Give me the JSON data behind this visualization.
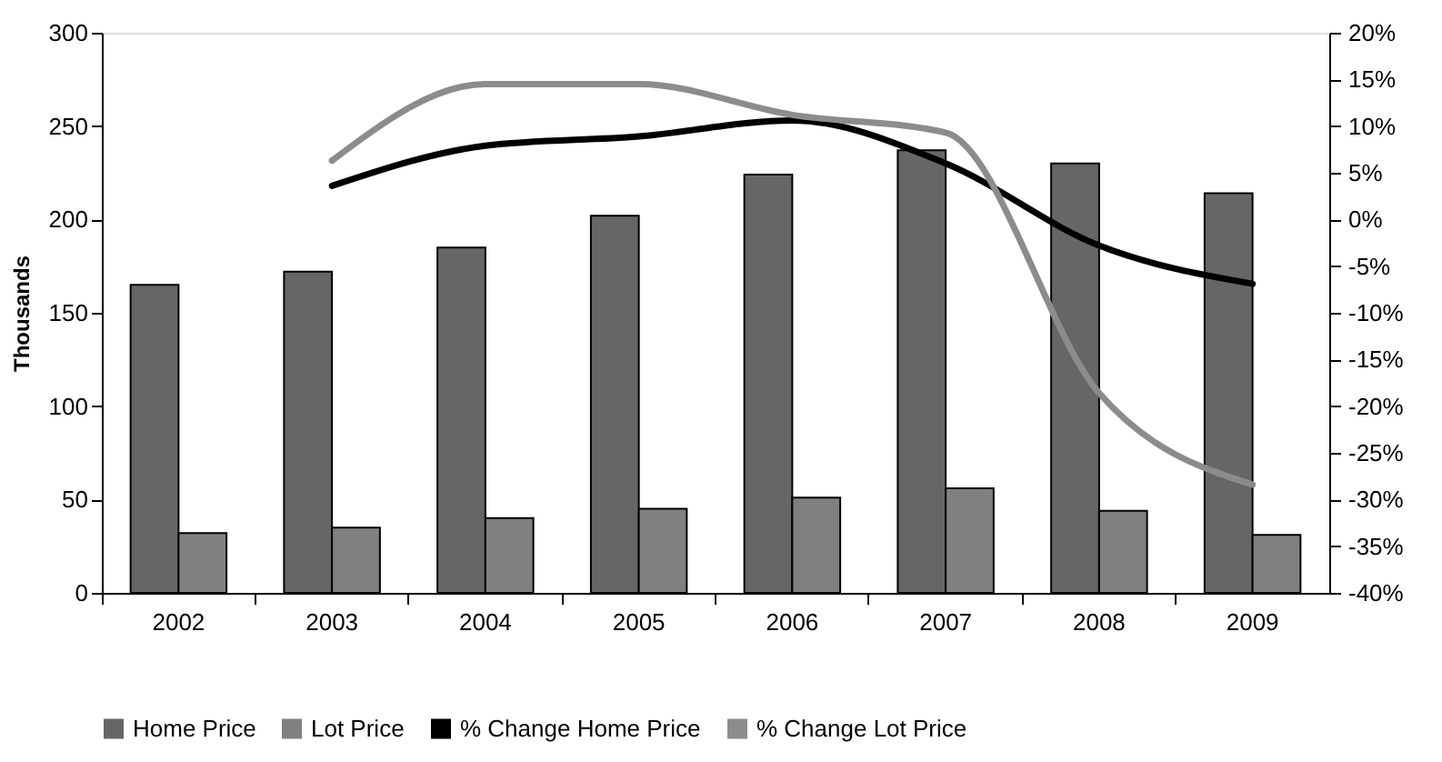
{
  "chart_data": {
    "type": "bar",
    "ylabel": "Thousands",
    "categories": [
      "2002",
      "2003",
      "2004",
      "2005",
      "2006",
      "2007",
      "2008",
      "2009"
    ],
    "series": [
      {
        "name": "Home Price",
        "color": "#666666",
        "values": [
          165,
          172,
          185,
          202,
          224,
          237,
          230,
          214
        ]
      },
      {
        "name": "Lot Price",
        "color": "#808080",
        "values": [
          32,
          35,
          40,
          45,
          51,
          56,
          44,
          31
        ]
      },
      {
        "name": "% Change Home Price",
        "type": "line",
        "axis": "y2",
        "color": "#000000",
        "values": [
          null,
          3.6,
          7.9,
          8.9,
          10.6,
          6.0,
          -2.8,
          -6.9
        ]
      },
      {
        "name": "% Change Lot Price",
        "type": "line",
        "axis": "y2",
        "color": "#8c8c8c",
        "values": [
          null,
          6.3,
          14.5,
          14.5,
          11.2,
          9.3,
          -18.6,
          -28.4
        ]
      }
    ],
    "ylim": [
      0,
      300
    ],
    "yticks": [
      0,
      50,
      100,
      150,
      200,
      250,
      300
    ],
    "y2lim": [
      -40,
      20
    ],
    "y2ticks": [
      {
        "value": -40,
        "label": "-40%"
      },
      {
        "value": -35,
        "label": "-35%"
      },
      {
        "value": -30,
        "label": "-30%"
      },
      {
        "value": -25,
        "label": "-25%"
      },
      {
        "value": -20,
        "label": "-20%"
      },
      {
        "value": -15,
        "label": "-15%"
      },
      {
        "value": -10,
        "label": "-10%"
      },
      {
        "value": -5,
        "label": "-5%"
      },
      {
        "value": 0,
        "label": "0%"
      },
      {
        "value": 5,
        "label": "5%"
      },
      {
        "value": 10,
        "label": "10%"
      },
      {
        "value": 15,
        "label": "15%"
      },
      {
        "value": 20,
        "label": "20%"
      }
    ],
    "grid": false,
    "legend": "bottom",
    "marker": "none",
    "line_style": "solid"
  }
}
